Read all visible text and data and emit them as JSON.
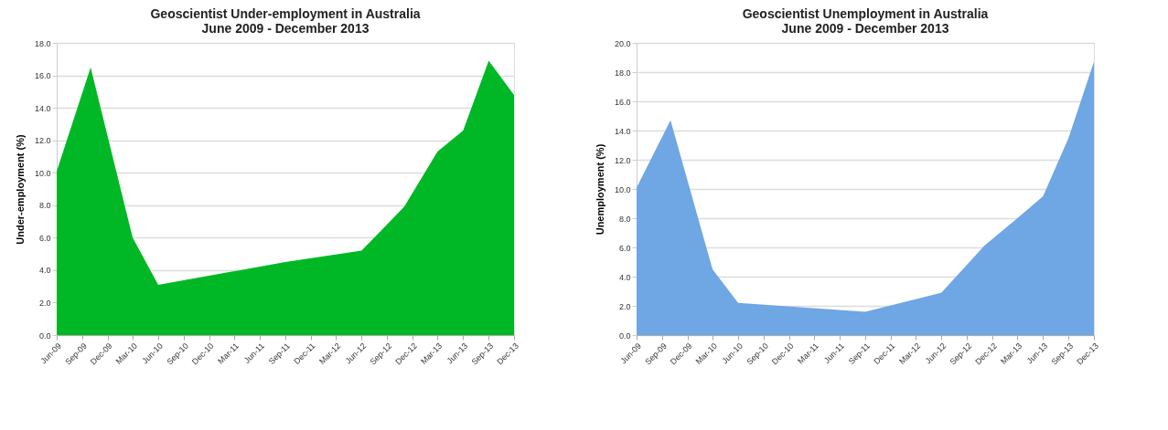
{
  "chart_data": [
    {
      "type": "area",
      "title": "Geoscientist Under-employment in Australia",
      "subtitle": "June 2009 - December 2013",
      "ylabel": "Under-employment (%)",
      "x": [
        "2009-06",
        "2009-10",
        "2010-03",
        "2010-06",
        "2011-09",
        "2012-06",
        "2012-11",
        "2013-03",
        "2013-06",
        "2013-09",
        "2013-12"
      ],
      "series": [
        {
          "color": "#00b825",
          "values": [
            10.1,
            16.5,
            6.0,
            3.1,
            4.5,
            5.2,
            7.9,
            11.3,
            12.6,
            16.9,
            14.8
          ]
        }
      ],
      "xlim": [
        "2009-06",
        "2013-12"
      ],
      "xticks": [
        {
          "value": "2009-06",
          "label": "Jun-09"
        },
        {
          "value": "2009-09",
          "label": "Sep-09"
        },
        {
          "value": "2009-12",
          "label": "Dec-09"
        },
        {
          "value": "2010-03",
          "label": "Mar-10"
        },
        {
          "value": "2010-06",
          "label": "Jun-10"
        },
        {
          "value": "2010-09",
          "label": "Sep-10"
        },
        {
          "value": "2010-12",
          "label": "Dec-10"
        },
        {
          "value": "2011-03",
          "label": "Mar-11"
        },
        {
          "value": "2011-06",
          "label": "Jun-11"
        },
        {
          "value": "2011-09",
          "label": "Sep-11"
        },
        {
          "value": "2011-12",
          "label": "Dec-11"
        },
        {
          "value": "2012-03",
          "label": "Mar-12"
        },
        {
          "value": "2012-06",
          "label": "Jun-12"
        },
        {
          "value": "2012-09",
          "label": "Sep-12"
        },
        {
          "value": "2012-12",
          "label": "Dec-12"
        },
        {
          "value": "2013-03",
          "label": "Mar-13"
        },
        {
          "value": "2013-06",
          "label": "Jun-13"
        },
        {
          "value": "2013-09",
          "label": "Sep-13"
        },
        {
          "value": "2013-12",
          "label": "Dec-13"
        }
      ],
      "ylim": [
        0,
        18
      ],
      "yticks": [
        {
          "value": 0,
          "label": "0.0"
        },
        {
          "value": 2,
          "label": "2.0"
        },
        {
          "value": 4,
          "label": "4.0"
        },
        {
          "value": 6,
          "label": "6.0"
        },
        {
          "value": 8,
          "label": "8.0"
        },
        {
          "value": 10,
          "label": "10.0"
        },
        {
          "value": 12,
          "label": "12.0"
        },
        {
          "value": 14,
          "label": "14.0"
        },
        {
          "value": 16,
          "label": "16.0"
        },
        {
          "value": 18,
          "label": "18.0"
        }
      ],
      "grid": "y"
    },
    {
      "type": "area",
      "title": "Geoscientist Unemployment in Australia",
      "subtitle": "June 2009 - December 2013",
      "ylabel": "Unemployment (%)",
      "x": [
        "2009-06",
        "2009-10",
        "2010-03",
        "2010-06",
        "2011-09",
        "2012-06",
        "2012-11",
        "2013-03",
        "2013-06",
        "2013-09",
        "2013-12"
      ],
      "series": [
        {
          "color": "#6fa6e4",
          "values": [
            10.1,
            14.7,
            4.5,
            2.2,
            1.6,
            2.9,
            6.1,
            8.0,
            9.5,
            13.5,
            18.7
          ]
        }
      ],
      "xlim": [
        "2009-06",
        "2013-12"
      ],
      "xticks": [
        {
          "value": "2009-06",
          "label": "Jun-09"
        },
        {
          "value": "2009-09",
          "label": "Sep-09"
        },
        {
          "value": "2009-12",
          "label": "Dec-09"
        },
        {
          "value": "2010-03",
          "label": "Mar-10"
        },
        {
          "value": "2010-06",
          "label": "Jun-10"
        },
        {
          "value": "2010-09",
          "label": "Sep-10"
        },
        {
          "value": "2010-12",
          "label": "Dec-10"
        },
        {
          "value": "2011-03",
          "label": "Mar-11"
        },
        {
          "value": "2011-06",
          "label": "Jun-11"
        },
        {
          "value": "2011-09",
          "label": "Sep-11"
        },
        {
          "value": "2011-12",
          "label": "Dec-11"
        },
        {
          "value": "2012-03",
          "label": "Mar-12"
        },
        {
          "value": "2012-06",
          "label": "Jun-12"
        },
        {
          "value": "2012-09",
          "label": "Sep-12"
        },
        {
          "value": "2012-12",
          "label": "Dec-12"
        },
        {
          "value": "2013-03",
          "label": "Mar-13"
        },
        {
          "value": "2013-06",
          "label": "Jun-13"
        },
        {
          "value": "2013-09",
          "label": "Sep-13"
        },
        {
          "value": "2013-12",
          "label": "Dec-13"
        }
      ],
      "ylim": [
        0,
        20
      ],
      "yticks": [
        {
          "value": 0,
          "label": "0.0"
        },
        {
          "value": 2,
          "label": "2.0"
        },
        {
          "value": 4,
          "label": "4.0"
        },
        {
          "value": 6,
          "label": "6.0"
        },
        {
          "value": 8,
          "label": "8.0"
        },
        {
          "value": 10,
          "label": "10.0"
        },
        {
          "value": 12,
          "label": "12.0"
        },
        {
          "value": 14,
          "label": "14.0"
        },
        {
          "value": 16,
          "label": "16.0"
        },
        {
          "value": 18,
          "label": "18.0"
        },
        {
          "value": 20,
          "label": "20.0"
        }
      ],
      "grid": "y"
    }
  ]
}
